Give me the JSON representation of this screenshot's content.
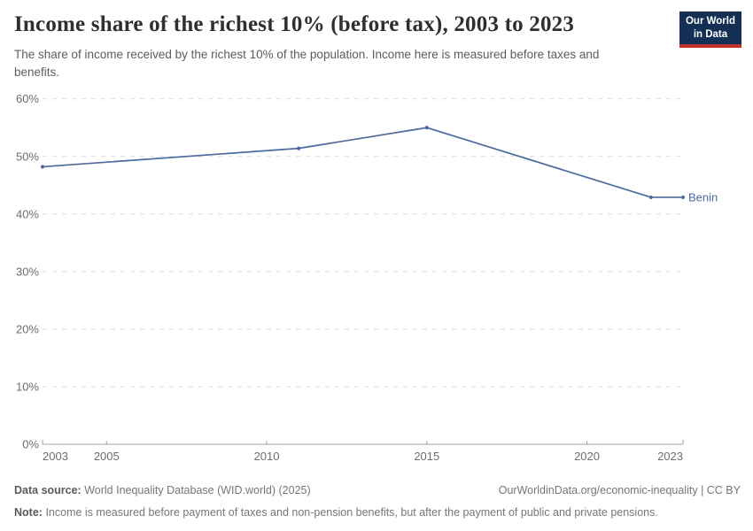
{
  "header": {
    "title": "Income share of the richest 10% (before tax), 2003 to 2023",
    "subtitle": "The share of income received by the richest 10% of the population. Income here is measured before taxes and benefits.",
    "logo": {
      "line1": "Our World",
      "line2": "in Data",
      "bg_color": "#132f54",
      "accent_color": "#c0332b"
    }
  },
  "chart_data": {
    "type": "line",
    "title": "Income share of the richest 10% (before tax), 2003 to 2023",
    "xlabel": "",
    "ylabel": "",
    "x_domain": [
      2003,
      2023
    ],
    "y_domain": [
      0,
      60
    ],
    "grid": "horizontal dashed gridlines, on",
    "legend_position": "end-of-line label",
    "x_ticks": [
      {
        "v": 2003,
        "label": "2003"
      },
      {
        "v": 2005,
        "label": "2005"
      },
      {
        "v": 2010,
        "label": "2010"
      },
      {
        "v": 2015,
        "label": "2015"
      },
      {
        "v": 2020,
        "label": "2020"
      },
      {
        "v": 2023,
        "label": "2023"
      }
    ],
    "y_ticks": [
      {
        "v": 0,
        "label": "0%"
      },
      {
        "v": 10,
        "label": "10%"
      },
      {
        "v": 20,
        "label": "20%"
      },
      {
        "v": 30,
        "label": "30%"
      },
      {
        "v": 40,
        "label": "40%"
      },
      {
        "v": 50,
        "label": "50%"
      },
      {
        "v": 60,
        "label": "60%"
      }
    ],
    "series": [
      {
        "name": "Benin",
        "color": "#4d6a9e",
        "points": [
          {
            "x": 2003,
            "y": 48.2
          },
          {
            "x": 2011,
            "y": 51.4
          },
          {
            "x": 2015,
            "y": 55.0
          },
          {
            "x": 2022,
            "y": 42.9
          },
          {
            "x": 2023,
            "y": 42.9
          }
        ]
      }
    ],
    "grid_color": "#dadada",
    "axis_color": "#a5a5a5",
    "tick_text_color": "#6e6e6e"
  },
  "footer": {
    "data_source_label": "Data source:",
    "data_source_text": "World Inequality Database (WID.world) (2025)",
    "credit": "OurWorldinData.org/economic-inequality | CC BY",
    "note_label": "Note:",
    "note_text": "Income is measured before payment of taxes and non-pension benefits, but after the payment of public and private pensions."
  }
}
